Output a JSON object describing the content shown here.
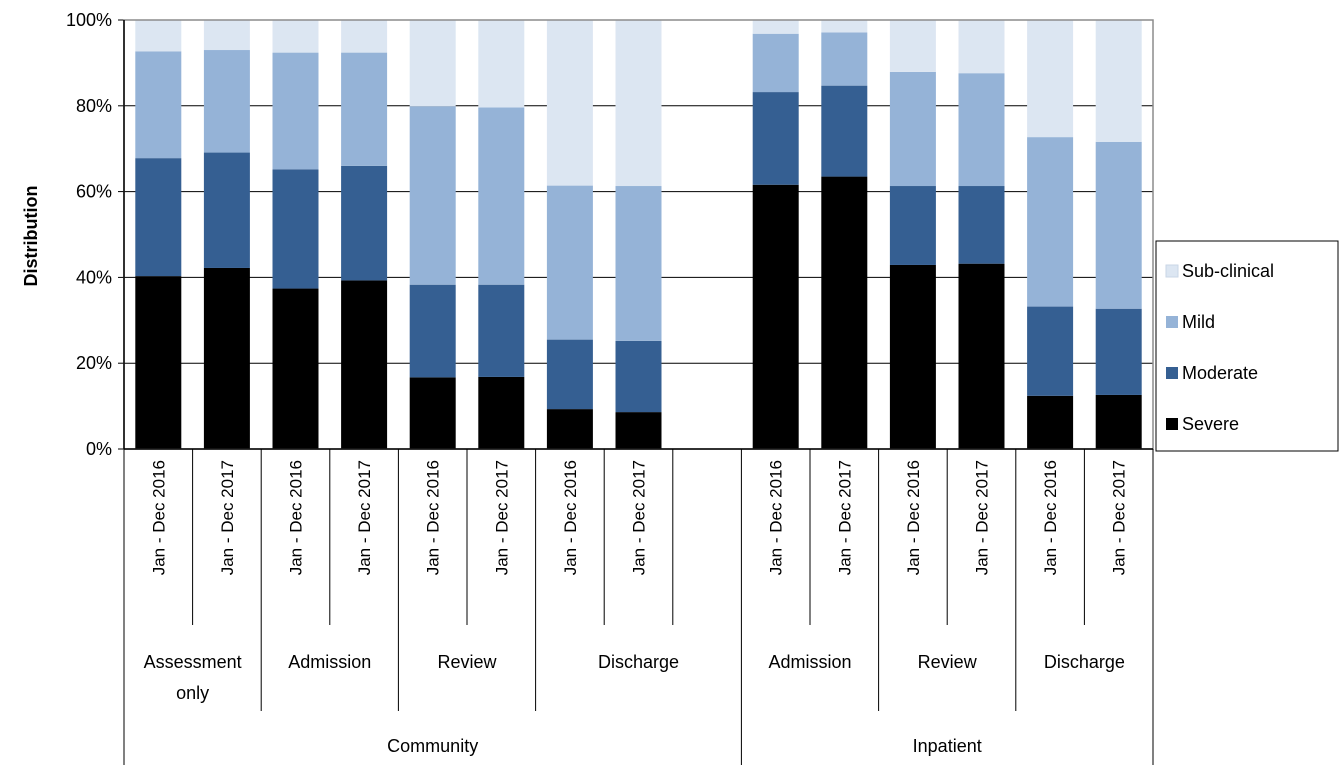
{
  "chart_data": {
    "type": "bar",
    "stacked": true,
    "title": "",
    "ylabel": "Distribution",
    "xlabel": "",
    "ylim": [
      0,
      100
    ],
    "y_ticks": [
      "0%",
      "20%",
      "40%",
      "60%",
      "80%",
      "100%"
    ],
    "grid": true,
    "legend_position": "right",
    "categories": [
      "Jan - Dec 2016",
      "Jan - Dec 2017",
      "Jan - Dec 2016",
      "Jan - Dec 2017",
      "Jan - Dec 2016",
      "Jan - Dec 2017",
      "Jan - Dec 2016",
      "Jan - Dec 2017",
      "",
      "Jan - Dec 2016",
      "Jan - Dec 2017",
      "Jan - Dec 2016",
      "Jan - Dec 2017",
      "Jan - Dec 2016",
      "Jan - Dec 2017"
    ],
    "subgroups": [
      {
        "label": "Assessment only",
        "start": 0,
        "end": 1
      },
      {
        "label": "Admission",
        "start": 2,
        "end": 3
      },
      {
        "label": "Review",
        "start": 4,
        "end": 5
      },
      {
        "label": "Discharge",
        "start": 6,
        "end": 8
      },
      {
        "label": "Admission",
        "start": 9,
        "end": 10
      },
      {
        "label": "Review",
        "start": 11,
        "end": 12
      },
      {
        "label": "Discharge",
        "start": 13,
        "end": 14
      }
    ],
    "groups": [
      {
        "label": "Community",
        "start": 0,
        "end": 8
      },
      {
        "label": "Inpatient",
        "start": 9,
        "end": 14
      }
    ],
    "series": [
      {
        "name": "Severe",
        "color": "#000000",
        "values": [
          40.3,
          42.2,
          37.4,
          39.3,
          16.7,
          16.8,
          9.3,
          8.6,
          null,
          61.6,
          63.5,
          42.9,
          43.2,
          12.4,
          12.6
        ]
      },
      {
        "name": "Moderate",
        "color": "#355F92",
        "values": [
          27.5,
          26.9,
          27.8,
          26.7,
          21.6,
          21.5,
          16.2,
          16.6,
          null,
          21.6,
          21.2,
          18.4,
          18.1,
          20.8,
          20.1
        ]
      },
      {
        "name": "Mild",
        "color": "#95B3D7",
        "values": [
          24.9,
          23.9,
          27.2,
          26.4,
          41.6,
          41.3,
          35.9,
          36.1,
          null,
          13.6,
          12.4,
          26.6,
          26.3,
          39.5,
          38.9
        ]
      },
      {
        "name": "Sub-clinical",
        "color": "#DCE6F2",
        "values": [
          7.3,
          7.0,
          7.6,
          7.6,
          20.1,
          20.4,
          38.6,
          38.7,
          null,
          3.2,
          2.9,
          12.1,
          12.4,
          27.3,
          28.4
        ]
      }
    ]
  }
}
